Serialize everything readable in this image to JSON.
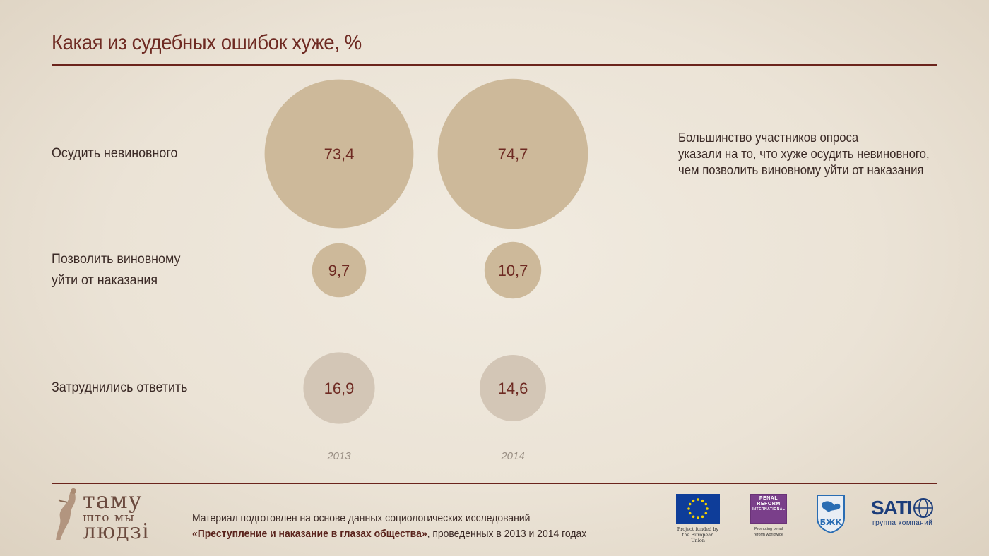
{
  "title": "Какая из судебных ошибок хуже, %",
  "note": [
    "Большинство участников опроса",
    "указали на то, что хуже осудить невиновного,",
    "чем позволить виновному уйти от наказания"
  ],
  "colors": {
    "title": "#6e2a22",
    "rule": "#6b241c",
    "bubble_main": "#cdb99a",
    "bubble_other": "#d3c6b6",
    "value_text": "#6e2a22",
    "year_text": "#9a8f84"
  },
  "chart_data": {
    "type": "bubble",
    "unit": "%",
    "years": [
      "2013",
      "2014"
    ],
    "rows": [
      {
        "label_lines": [
          "Осудить невиновного"
        ],
        "values": [
          73.4,
          74.7
        ],
        "display": [
          "73,4",
          "74,7"
        ],
        "color": "bubble_main"
      },
      {
        "label_lines": [
          "Позволить виновному",
          "уйти от наказания"
        ],
        "values": [
          9.7,
          10.7
        ],
        "display": [
          "9,7",
          "10,7"
        ],
        "color": "bubble_main"
      },
      {
        "label_lines": [
          "Затруднились ответить"
        ],
        "values": [
          16.9,
          14.6
        ],
        "display": [
          "16,9",
          "14,6"
        ],
        "color": "bubble_other"
      }
    ]
  },
  "footer": {
    "line1": "Материал подготовлен на основе данных социологических исследований",
    "line2_bold": "«Преступление и наказание в глазах общества»",
    "line2_rest": ", проведенных в 2013 и 2014 годах"
  },
  "logos": {
    "main": [
      "таму",
      "што мы",
      "людзі"
    ],
    "eu_caption": "Project funded by\nthe European Union",
    "pri_lines": [
      "PENAL",
      "REFORM",
      "INTERNATIONAL"
    ],
    "pri_caption": "Promoting penal\nreform worldwide",
    "buk": "БЖК",
    "sati_brand": "SATI",
    "sati_sub": "группа компаний"
  }
}
